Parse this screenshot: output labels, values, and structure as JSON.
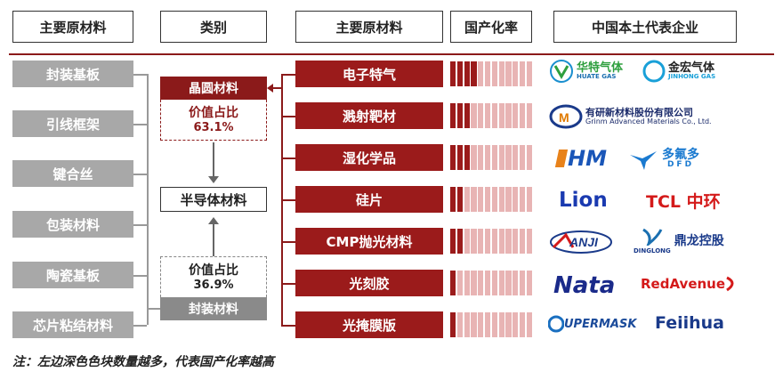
{
  "headers": {
    "col1": "主要原材料",
    "col2": "类别",
    "col3": "主要原材料",
    "col4": "国产化率",
    "col5": "中国本土代表企业"
  },
  "packaging_materials": [
    "封装基板",
    "引线框架",
    "键合丝",
    "包装材料",
    "陶瓷基板",
    "芯片粘结材料"
  ],
  "categories": {
    "wafer": "晶圆材料",
    "wafer_share_label": "价值占比",
    "wafer_share_value": "63.1%",
    "semiconductor": "半导体材料",
    "packaging_share_label": "价值占比",
    "packaging_share_value": "36.9%",
    "packaging": "封装材料"
  },
  "wafer_materials": [
    {
      "name": "电子特气",
      "localization_dark_blocks": 4
    },
    {
      "name": "溅射靶材",
      "localization_dark_blocks": 3
    },
    {
      "name": "湿化学品",
      "localization_dark_blocks": 3
    },
    {
      "name": "硅片",
      "localization_dark_blocks": 2
    },
    {
      "name": "CMP抛光材料",
      "localization_dark_blocks": 2
    },
    {
      "name": "光刻胶",
      "localization_dark_blocks": 1
    },
    {
      "name": "光掩膜版",
      "localization_dark_blocks": 1
    }
  ],
  "companies": {
    "row1": [
      "华特气体",
      "HUATE GAS",
      "金宏气体",
      "JINHONG GAS"
    ],
    "row2": [
      "有研新材料股份有限公司",
      "Grinm Advanced Materials Co., Ltd."
    ],
    "row3": [
      "HM",
      "多氟多",
      "DFD"
    ],
    "row4": [
      "Lion",
      "TCL 中环"
    ],
    "row5": [
      "ANJI",
      "DINGLONG",
      "鼎龙控股"
    ],
    "row6": [
      "Nata",
      "RedAvenue"
    ],
    "row7": [
      "UPERMASK",
      "Feiihua"
    ]
  },
  "colors": {
    "accent": "#9b1b1b",
    "gray": "#a8a8a8"
  },
  "note": "注：左边深色色块数量越多，代表国产化率越高"
}
